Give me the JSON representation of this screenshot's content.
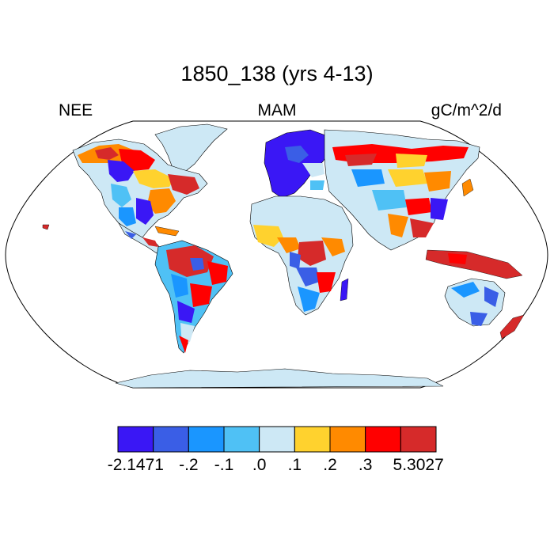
{
  "title": "1850_138 (yrs 4-13)",
  "left_label": "NEE",
  "center_label": "MAM",
  "right_label": "gC/m^2/d",
  "colorbar": {
    "colors": [
      "#3a17f5",
      "#3a5ee6",
      "#1a96ff",
      "#4fc1f5",
      "#cde8f5",
      "#ffd22e",
      "#ff8a00",
      "#ff0000",
      "#d62a2a"
    ],
    "labels": [
      "-2.1471",
      "-.2",
      "-.1",
      ".0",
      ".1",
      ".2",
      ".3",
      "5.3027"
    ]
  },
  "map": {
    "projection": "Robinson",
    "ocean_color": "#ffffff",
    "coastline_color": "#000000",
    "dominant_land_fill": "#cde8f5"
  }
}
